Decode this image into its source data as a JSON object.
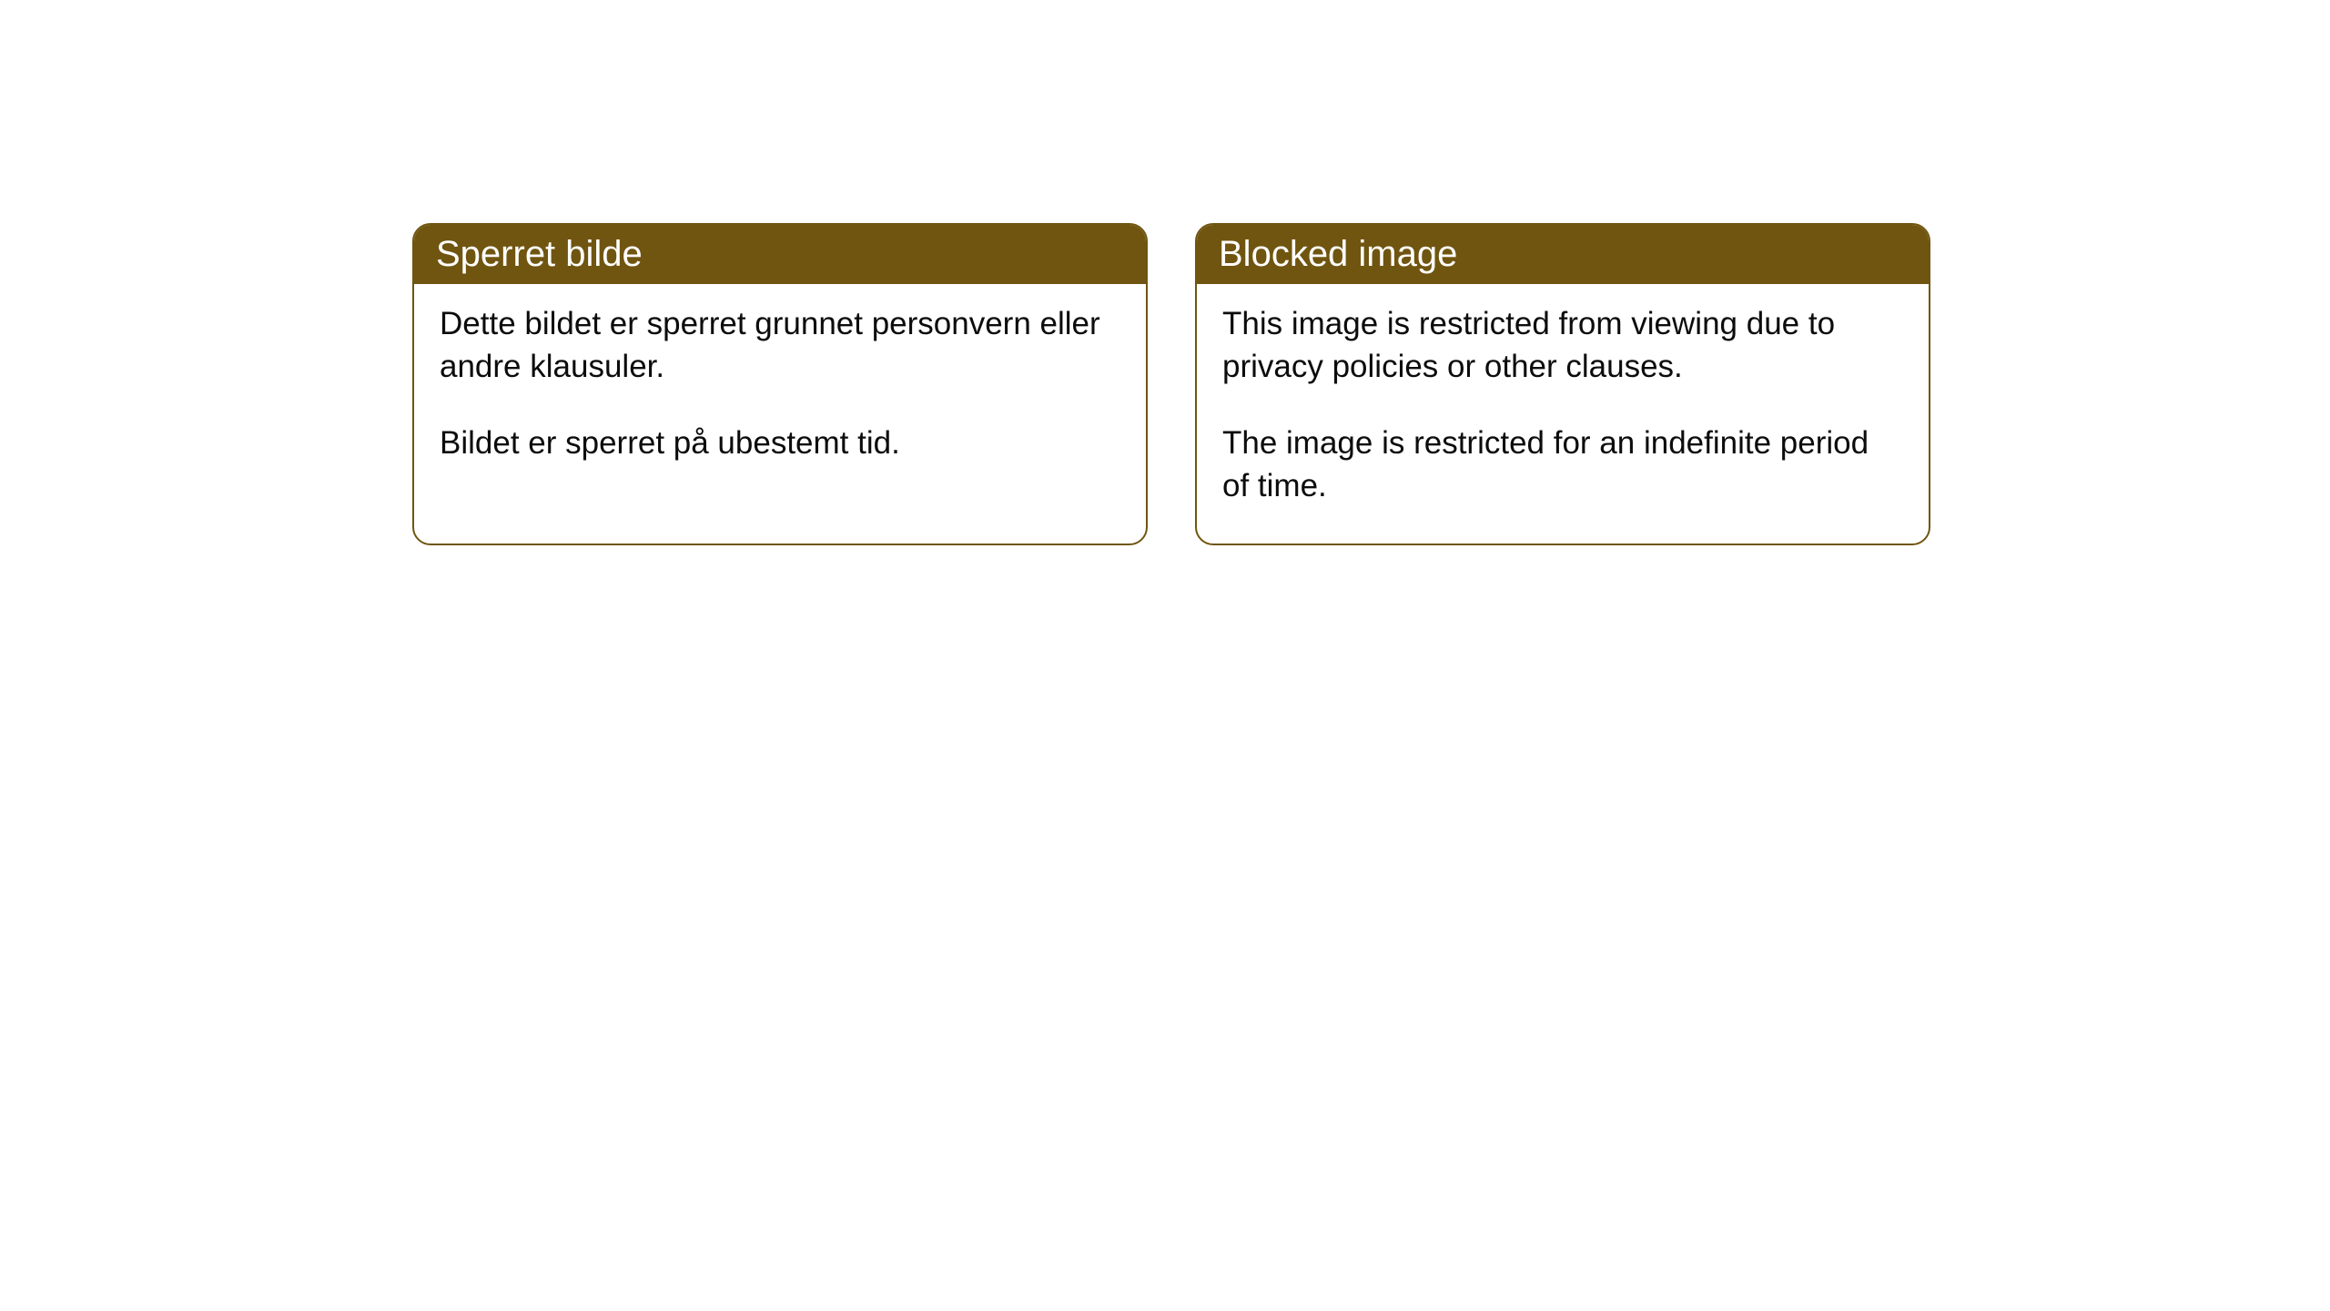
{
  "cards": [
    {
      "title": "Sperret bilde",
      "para1": "Dette bildet er sperret grunnet personvern eller andre klausuler.",
      "para2": "Bildet er sperret på ubestemt tid."
    },
    {
      "title": "Blocked image",
      "para1": "This image is restricted from viewing due to privacy policies or other clauses.",
      "para2": "The image is restricted for an indefinite period of time."
    }
  ],
  "style": {
    "header_bg": "#705510",
    "header_color": "#ffffff",
    "border_color": "#705510",
    "body_bg": "#ffffff",
    "text_color": "#0c0c0c",
    "border_radius": 20,
    "title_fontsize": 40,
    "body_fontsize": 35
  }
}
